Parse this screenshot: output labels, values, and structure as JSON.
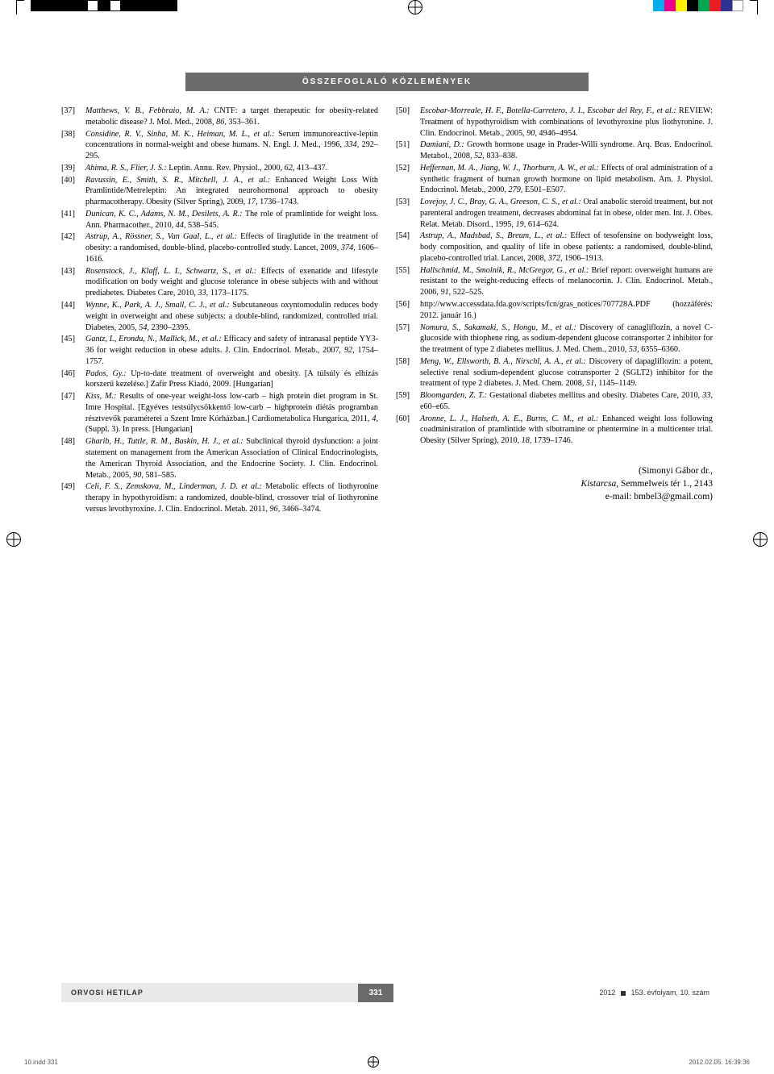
{
  "header": {
    "title": "ÖSSZEFOGLALÓ KÖZLEMÉNYEK"
  },
  "print_marks": {
    "density_gray": [
      "#000000",
      "#000000",
      "#000000",
      "#000000",
      "#000000",
      "#ffffff",
      "#000000",
      "#ffffff",
      "#000000",
      "#000000",
      "#000000",
      "#000000",
      "#000000"
    ],
    "color_bar": [
      "#00aeef",
      "#ec008c",
      "#fff200",
      "#000000",
      "#00a651",
      "#ed1c24",
      "#2e3192",
      "#ffffff"
    ]
  },
  "left_refs": [
    {
      "n": "[37]",
      "a": "Matthews, V. B., Febbraio, M. A.:",
      "t": " CNTF: a target therapeutic for obesity-related metabolic disease? J. Mol. Med., 2008, ",
      "v": "86,",
      "p": " 353–361."
    },
    {
      "n": "[38]",
      "a": "Considine, R. V., Sinha, M. K., Heiman, M. L., et al.:",
      "t": " Serum immunoreactive-leptin concentrations in normal-weight and obese humans. N. Engl. J. Med., 1996, ",
      "v": "334,",
      "p": " 292–295."
    },
    {
      "n": "[39]",
      "a": "Ahima, R. S., Flier, J. S.:",
      "t": " Leptin. Annu. Rev. Physiol., 2000, ",
      "v": "62,",
      "p": " 413–437."
    },
    {
      "n": "[40]",
      "a": "Ravussin, E., Smith, S. R., Mitchell, J. A., et al.:",
      "t": " Enhanced Weight Loss With Pramlintide/Metreleptin: An integrated neurohormonal approach to obesity pharmacotherapy. Obesity (Silver Spring), 2009, ",
      "v": "17,",
      "p": " 1736–1743."
    },
    {
      "n": "[41]",
      "a": "Dunican, K. C., Adams, N. M., Desilets, A. R.:",
      "t": " The role of pramlintide for weight loss. Ann. Pharmacother., 2010, ",
      "v": "44,",
      "p": " 538–545."
    },
    {
      "n": "[42]",
      "a": "Astrup, A., Rössner, S., Van Gaal, L., et al.:",
      "t": " Effects of liraglutide in the treatment of obesity: a randomised, double-blind, placebo-controlled study. Lancet, 2009, ",
      "v": "374,",
      "p": " 1606–1616."
    },
    {
      "n": "[43]",
      "a": "Rosenstock, J., Klaff, L. I., Schwartz, S., et al.:",
      "t": " Effects of exenatide and lifestyle modification on body weight and glucose tolerance in obese subjects with and without prediabetes. Diabetes Care, 2010, ",
      "v": "33,",
      "p": " 1173–1175."
    },
    {
      "n": "[44]",
      "a": "Wynne, K., Park, A. J., Small, C. J., et al.:",
      "t": " Subcutaneous oxyntomodulin reduces body weight in overweight and obese subjects: a double-blind, randomized, controlled trial. Diabetes, 2005, ",
      "v": "54,",
      "p": " 2390–2395."
    },
    {
      "n": "[45]",
      "a": "Gantz, I., Erondu, N., Mallick, M., et al.:",
      "t": " Efficacy and safety of intranasal peptide YY3-36 for weight reduction in obese adults. J. Clin. Endocrinol. Metab., 2007, ",
      "v": "92,",
      "p": " 1754–1757."
    },
    {
      "n": "[46]",
      "a": "Pados, Gy.:",
      "t": " Up-to-date treatment of overweight and obesity. [A túlsúly és elhízás korszerű kezelése.] Zafír Press Kiadó, 2009. [Hungarian]",
      "v": "",
      "p": ""
    },
    {
      "n": "[47]",
      "a": "Kiss, M.:",
      "t": " Results of one-year weight-loss low-carb – high protein diet program in St. Imre Hospital. [Egyéves testsúlycsökkentő low-carb – highprotein diétás programban résztvevők paraméterei a Szent Imre Kórházban.] Cardiometabolica Hungarica, 2011, ",
      "v": "4,",
      "p": " (Suppl. 3). In press. [Hungarian]"
    },
    {
      "n": "[48]",
      "a": "Gharib, H., Tuttle, R. M., Baskin, H. J., et al.:",
      "t": " Subclinical thyroid dysfunction: a joint statement on management from the American Association of Clinical Endocrinologists, the American Thyroid Association, and the Endocrine Society. J. Clin. Endocrinol. Metab., 2005, ",
      "v": "90,",
      "p": " 581–585."
    },
    {
      "n": "[49]",
      "a": "Celi, F. S., Zemskova, M., Linderman, J. D. et al.:",
      "t": " Metabolic effects of liothyronine therapy in hypothyroidism: a randomized, double-blind, crossover trial of liothyronine versus levothyroxine. J. Clin. Endocrinol. Metab. 2011, ",
      "v": "96,",
      "p": " 3466–3474."
    }
  ],
  "right_refs": [
    {
      "n": "[50]",
      "a": "Escobar-Morreale, H. F., Botella-Carretero, J. I., Escobar del Rey, F., et al.:",
      "t": " REVIEW: Treatment of hypothyroidism with combinations of levothyroxine plus liothyronine. J. Clin. Endocrinol. Metab., 2005, ",
      "v": "90,",
      "p": " 4946–4954."
    },
    {
      "n": "[51]",
      "a": "Damiani, D.:",
      "t": " Growth hormone usage in Prader-Willi syndrome. Arq. Bras. Endocrinol. Metabol., 2008, ",
      "v": "52,",
      "p": " 833–838."
    },
    {
      "n": "[52]",
      "a": "Heffernan, M. A., Jiang, W. J., Thorburn, A. W., et al.:",
      "t": " Effects of oral administration of a synthetic fragment of human growth hormone on lipid metabolism. Am. J. Physiol. Endocrinol. Metab., 2000, ",
      "v": "279,",
      "p": " E501–E507."
    },
    {
      "n": "[53]",
      "a": "Lovejoy, J. C., Bray, G. A., Greeson, C. S., et al.:",
      "t": " Oral anabolic steroid treatment, but not parenteral androgen treatment, decreases abdominal fat in obese, older men. Int. J. Obes. Relat. Metab. Disord., 1995, ",
      "v": "19,",
      "p": " 614–624."
    },
    {
      "n": "[54]",
      "a": "Astrup, A., Madsbad, S., Breum, L., et al.:",
      "t": " Effect of tesofensine on bodyweight loss, body composition, and quality of life in obese patients: a randomised, double-blind, placebo-controlled trial. Lancet, 2008, ",
      "v": "372,",
      "p": " 1906–1913."
    },
    {
      "n": "[55]",
      "a": "Hallschmid, M., Smolnik, R., McGregor, G., et al.:",
      "t": " Brief report: overweight humans are resistant to the weight-reducing effects of melanocortin. J. Clin. Endocrinol. Metab., 2006, ",
      "v": "91,",
      "p": " 522–525."
    },
    {
      "n": "[56]",
      "a": "",
      "t": "http://www.accessdata.fda.gov/scripts/fcn/gras_notices/707728A.PDF (hozzáférés: 2012. január 16.)",
      "v": "",
      "p": ""
    },
    {
      "n": "[57]",
      "a": "Nomura, S., Sakamaki, S., Hongu, M., et al.:",
      "t": " Discovery of canagliflozin, a novel C-glucoside with thiophene ring, as sodium-dependent glucose cotransporter 2 inhibitor for the treatment of type 2 diabetes mellitus. J. Med. Chem., 2010, ",
      "v": "53,",
      "p": " 6355–6360."
    },
    {
      "n": "[58]",
      "a": "Meng, W., Ellsworth, B. A., Nirschl, A. A., et al.:",
      "t": " Discovery of dapagliflozin: a potent, selective renal sodium-dependent glucose cotransporter 2 (SGLT2) inhibitor for the treatment of type 2 diabetes. J. Med. Chem. 2008, ",
      "v": "51,",
      "p": " 1145–1149."
    },
    {
      "n": "[59]",
      "a": "Bloomgarden, Z. T.:",
      "t": " Gestational diabetes mellitus and obesity. Diabetes Care, 2010, ",
      "v": "33,",
      "p": " e60–e65."
    },
    {
      "n": "[60]",
      "a": "Aronne, L. J., Halseth, A. E., Burns, C. M., et al.:",
      "t": " Enhanced weight loss following coadministration of pramlintide with sibutramine or phentermine in a multicenter trial. Obesity (Silver Spring), 2010, ",
      "v": "18,",
      "p": " 1739–1746."
    }
  ],
  "author": {
    "line1": "(Simonyi Gábor dr.,",
    "line2_i": "Kistarcsa,",
    "line2_r": " Semmelweis tér 1., 2143",
    "line3": "e-mail: bmbel3@gmail.com)"
  },
  "footer": {
    "journal": "ORVOSI HETILAP",
    "page": "331",
    "issue": "2012  ■  153. évfolyam, 10. szám"
  },
  "imprint": {
    "left": "10.indd   331",
    "right": "2012.02.05.   16:39:36"
  },
  "colors": {
    "header_bg": "#6b6b6b",
    "footer_bg": "#e8e8e8",
    "page_bg": "#6b6b6b"
  }
}
